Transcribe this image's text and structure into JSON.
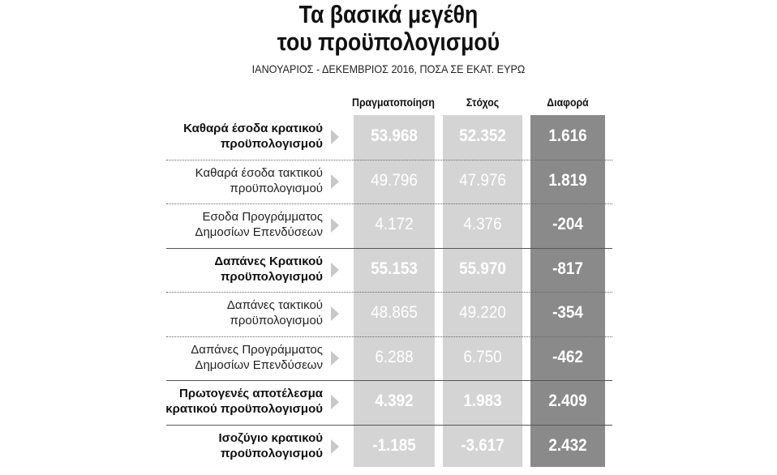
{
  "header": {
    "title_line1": "Τα βασικά μεγέθη",
    "title_line2": "του προϋπολογισμού",
    "subtitle": "ΙΑΝΟΥΑΡΙΟΣ - ΔΕΚΕΜΒΡΙΟΣ 2016, ΠΟΣΑ ΣΕ ΕΚΑΤ. ΕΥΡΩ"
  },
  "colors": {
    "light_column": "#d4d4d4",
    "dark_column": "#8a8a8a",
    "value_text": "#ffffff"
  },
  "chart_data": {
    "type": "table",
    "title": "Τα βασικά μεγέθη του προϋπολογισμού",
    "subtitle": "ΙΑΝΟΥΑΡΙΟΣ - ΔΕΚΕΜΒΡΙΟΣ 2016, ΠΟΣΑ ΣΕ ΕΚΑΤ. ΕΥΡΩ",
    "columns": [
      "Πραγματοποίηση",
      "Στόχος",
      "Διαφορά"
    ],
    "rows": [
      {
        "label1": "Καθαρά έσοδα κρατικού",
        "label2": "προϋπολογισμού",
        "bold": true,
        "actual": "53.968",
        "target": "52.352",
        "diff": "1.616"
      },
      {
        "label1": "Καθαρά έσοδα τακτικού",
        "label2": "προϋπολογισμού",
        "bold": false,
        "actual": "49.796",
        "target": "47.976",
        "diff": "1.819"
      },
      {
        "label1": "Εσοδα Προγράμματος",
        "label2": "Δημοσίων Επενδύσεων",
        "bold": false,
        "actual": "4.172",
        "target": "4.376",
        "diff": "-204"
      },
      {
        "label1": "Δαπάνες Κρατικού",
        "label2": "προϋπολογισμού",
        "bold": true,
        "actual": "55.153",
        "target": "55.970",
        "diff": "-817"
      },
      {
        "label1": "Δαπάνες τακτικού",
        "label2": "προϋπολογισμού",
        "bold": false,
        "actual": "48.865",
        "target": "49.220",
        "diff": "-354"
      },
      {
        "label1": "Δαπάνες Προγράμματος",
        "label2": "Δημοσίων Επενδύσεων",
        "bold": false,
        "actual": "6.288",
        "target": "6.750",
        "diff": "-462"
      },
      {
        "label1": "Πρωτογενές αποτέλεσμα",
        "label2": "κρατικού προϋπολογισμού",
        "bold": true,
        "actual": "4.392",
        "target": "1.983",
        "diff": "2.409"
      },
      {
        "label1": "Ισοζύγιο κρατικού",
        "label2": "προϋπολογισμού",
        "bold": true,
        "actual": "-1.185",
        "target": "-3.617",
        "diff": "2.432"
      }
    ]
  }
}
